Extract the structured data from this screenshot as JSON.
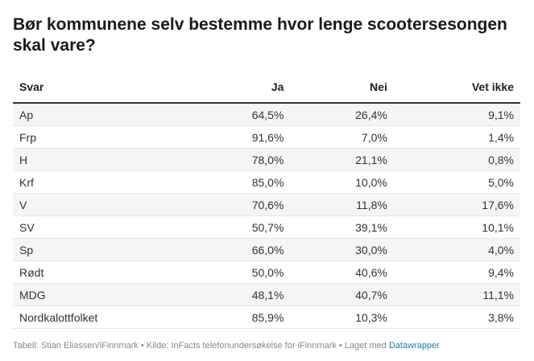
{
  "title": "Bør kommunene selv bestemme hvor lenge scootersesongen skal vare?",
  "chart_data": {
    "type": "table",
    "columns": [
      "Svar",
      "Ja",
      "Nei",
      "Vet ikke"
    ],
    "rows": [
      [
        "Ap",
        "64,5%",
        "26,4%",
        "9,1%"
      ],
      [
        "Frp",
        "91,6%",
        "7,0%",
        "1,4%"
      ],
      [
        "H",
        "78,0%",
        "21,1%",
        "0,8%"
      ],
      [
        "Krf",
        "85,0%",
        "10,0%",
        "5,0%"
      ],
      [
        "V",
        "70,6%",
        "11,8%",
        "17,6%"
      ],
      [
        "SV",
        "50,7%",
        "39,1%",
        "10,1%"
      ],
      [
        "Sp",
        "66,0%",
        "30,0%",
        "4,0%"
      ],
      [
        "Rødt",
        "50,0%",
        "40,6%",
        "9,4%"
      ],
      [
        "MDG",
        "48,1%",
        "40,7%",
        "11,1%"
      ],
      [
        "Nordkalottfolket",
        "85,9%",
        "10,3%",
        "3,8%"
      ]
    ]
  },
  "footer": {
    "text": "Tabell: Stian Eliassen/iFinnmark • Kilde: InFacts telefonundersøkelse for iFinnmark • Laget med ",
    "link": "Datawrapper"
  }
}
